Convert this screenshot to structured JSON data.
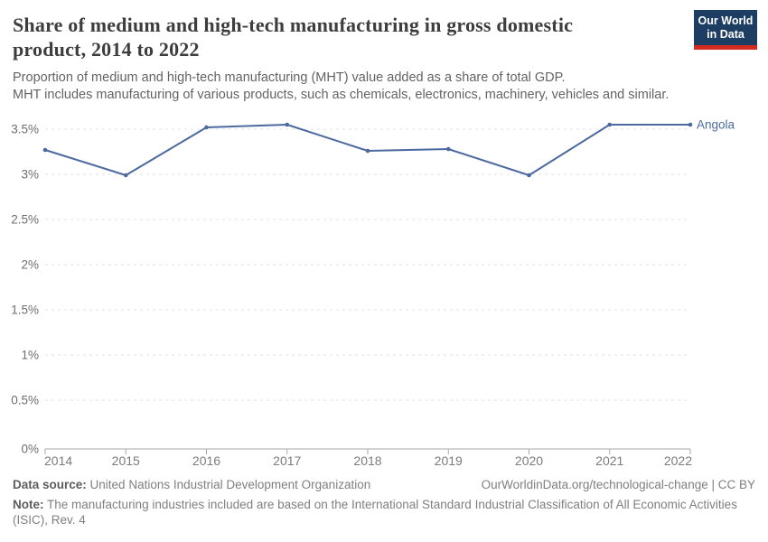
{
  "header": {
    "title": "Share of medium and high-tech manufacturing in gross domestic product, 2014 to 2022",
    "subtitle_lines": [
      "Proportion of medium and high-tech manufacturing (MHT) value added as a share of total GDP.",
      "MHT includes manufacturing of various products, such as chemicals, electronics, machinery, vehicles and similar."
    ],
    "logo": {
      "line1": "Our World",
      "line2": "in Data",
      "bg_color": "#1d3d63",
      "accent_color": "#d42b21"
    }
  },
  "chart_data": {
    "type": "line",
    "title": "Share of medium and high-tech manufacturing in gross domestic product, 2014 to 2022",
    "x": [
      2014,
      2015,
      2016,
      2017,
      2018,
      2019,
      2020,
      2021,
      2022
    ],
    "series": [
      {
        "name": "Angola",
        "values": [
          3.27,
          2.99,
          3.52,
          3.55,
          3.26,
          3.28,
          2.99,
          3.55,
          3.55
        ],
        "color": "#4C6A9F"
      }
    ],
    "xlabel": "",
    "ylabel": "",
    "ylim": [
      0,
      3.5
    ],
    "yticks": [
      "0%",
      "0.5%",
      "1%",
      "1.5%",
      "2%",
      "2.5%",
      "3%",
      "3.5%"
    ],
    "grid": "horizontal-dashed",
    "legend": "line-end-label",
    "colors": {
      "gridline": "#e0e0e0",
      "axis": "#a8a8a8",
      "y_tick_label": "#6e6e6e",
      "x_tick_label": "#7b7b7b"
    }
  },
  "footer": {
    "data_source_label": "Data source:",
    "data_source_text": "United Nations Industrial Development Organization",
    "license_text": "OurWorldinData.org/technological-change | CC BY",
    "note_label": "Note:",
    "note_text": "The manufacturing industries included are based on the International Standard Industrial Classification of All Economic Activities (ISIC), Rev. 4"
  }
}
